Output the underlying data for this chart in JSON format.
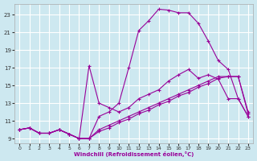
{
  "xlabel": "Windchill (Refroidissement éolien,°C)",
  "bg_color": "#cde8f0",
  "grid_color": "#ffffff",
  "line_color": "#990099",
  "xlim": [
    -0.5,
    23.5
  ],
  "ylim": [
    8.5,
    24.2
  ],
  "xticks": [
    0,
    1,
    2,
    3,
    4,
    5,
    6,
    7,
    8,
    9,
    10,
    11,
    12,
    13,
    14,
    15,
    16,
    17,
    18,
    19,
    20,
    21,
    22,
    23
  ],
  "yticks": [
    9,
    11,
    13,
    15,
    17,
    19,
    21,
    23
  ],
  "series": [
    {
      "x": [
        0,
        1,
        2,
        3,
        4,
        5,
        6,
        7,
        8,
        9,
        10,
        11,
        12,
        13,
        14,
        15,
        16,
        17,
        18,
        19,
        20,
        21,
        22,
        23
      ],
      "y": [
        10.0,
        10.2,
        9.6,
        9.6,
        10.0,
        9.5,
        9.0,
        17.2,
        13.0,
        12.5,
        12.0,
        12.5,
        13.5,
        14.0,
        14.5,
        15.5,
        16.2,
        16.8,
        15.8,
        16.2,
        15.7,
        13.5,
        13.5,
        11.5
      ]
    },
    {
      "x": [
        0,
        1,
        2,
        3,
        4,
        5,
        6,
        7,
        8,
        9,
        10,
        11,
        12,
        13,
        14,
        15,
        16,
        17,
        18,
        19,
        20,
        21,
        22,
        23
      ],
      "y": [
        10.0,
        10.2,
        9.6,
        9.6,
        10.0,
        9.5,
        9.0,
        9.0,
        11.5,
        12.0,
        13.0,
        17.0,
        21.2,
        22.3,
        23.6,
        23.5,
        23.2,
        23.2,
        22.0,
        20.0,
        17.8,
        16.8,
        13.5,
        11.5
      ]
    },
    {
      "x": [
        0,
        1,
        2,
        3,
        4,
        5,
        6,
        7,
        8,
        9,
        10,
        11,
        12,
        13,
        14,
        15,
        16,
        17,
        18,
        19,
        20,
        21,
        22,
        23
      ],
      "y": [
        10.0,
        10.2,
        9.6,
        9.6,
        10.0,
        9.5,
        9.0,
        9.0,
        10.0,
        10.5,
        11.0,
        11.5,
        12.0,
        12.5,
        13.0,
        13.5,
        14.0,
        14.5,
        15.0,
        15.5,
        16.0,
        16.0,
        16.0,
        12.0
      ]
    },
    {
      "x": [
        0,
        1,
        2,
        3,
        4,
        5,
        6,
        7,
        8,
        9,
        10,
        11,
        12,
        13,
        14,
        15,
        16,
        17,
        18,
        19,
        20,
        21,
        22,
        23
      ],
      "y": [
        10.0,
        10.2,
        9.6,
        9.6,
        10.0,
        9.5,
        9.0,
        9.0,
        9.8,
        10.2,
        10.8,
        11.2,
        11.8,
        12.2,
        12.8,
        13.2,
        13.8,
        14.2,
        14.8,
        15.2,
        15.8,
        16.0,
        16.0,
        11.8
      ]
    }
  ]
}
